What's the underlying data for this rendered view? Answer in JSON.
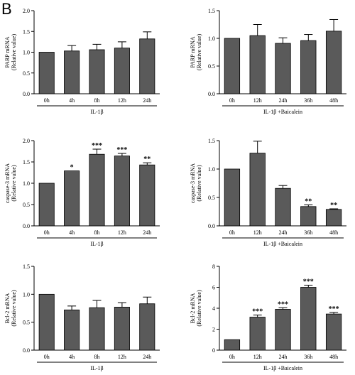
{
  "figure": {
    "panel_label": "B"
  },
  "chart_data": [
    {
      "type": "bar",
      "ylabel": [
        "PARP mRNA",
        "(Relative value)"
      ],
      "xlabel": "IL-1β",
      "categories": [
        "0h",
        "4h",
        "8h",
        "12h",
        "24h"
      ],
      "values": [
        1.0,
        1.03,
        1.06,
        1.1,
        1.32
      ],
      "errors": [
        0,
        0.13,
        0.13,
        0.15,
        0.17
      ],
      "significance": [
        "",
        "",
        "",
        "",
        ""
      ],
      "ylim": [
        0,
        2.0
      ],
      "yticks": [
        "0.0",
        "0.5",
        "1.0",
        "1.5",
        "2.0"
      ],
      "ytick_values": [
        0,
        0.5,
        1.0,
        1.5,
        2.0
      ]
    },
    {
      "type": "bar",
      "ylabel": [
        "PARP mRNA",
        "(Relative value)"
      ],
      "xlabel": "IL-1β +Baicalein",
      "categories": [
        "0h",
        "12h",
        "24h",
        "36h",
        "48h"
      ],
      "values": [
        1.0,
        1.05,
        0.91,
        0.96,
        1.13
      ],
      "errors": [
        0,
        0.2,
        0.1,
        0.11,
        0.21
      ],
      "significance": [
        "",
        "",
        "",
        "",
        ""
      ],
      "ylim": [
        0,
        1.5
      ],
      "yticks": [
        "0.0",
        "0.5",
        "1.0",
        "1.5"
      ],
      "ytick_values": [
        0,
        0.5,
        1.0,
        1.5
      ]
    },
    {
      "type": "bar",
      "ylabel": [
        "caspase-3 mRNA",
        "(Relative value)"
      ],
      "xlabel": "IL-1β",
      "categories": [
        "0h",
        "4h",
        "8h",
        "12h",
        "24h"
      ],
      "values": [
        1.0,
        1.29,
        1.68,
        1.64,
        1.43
      ],
      "errors": [
        0,
        0,
        0.12,
        0.06,
        0.05
      ],
      "significance": [
        "",
        "*",
        "***",
        "***",
        "**"
      ],
      "ylim": [
        0,
        2.0
      ],
      "yticks": [
        "0.0",
        "0.5",
        "1.0",
        "1.5",
        "2.0"
      ],
      "ytick_values": [
        0,
        0.5,
        1.0,
        1.5,
        2.0
      ]
    },
    {
      "type": "bar",
      "ylabel": [
        "caspase-3 mRNA",
        "(Relative value)"
      ],
      "xlabel": "IL-1β +Baicalein",
      "categories": [
        "0h",
        "12h",
        "24h",
        "36h",
        "48h"
      ],
      "values": [
        1.0,
        1.28,
        0.66,
        0.34,
        0.29
      ],
      "errors": [
        0,
        0.21,
        0.05,
        0.03,
        0.01
      ],
      "significance": [
        "",
        "",
        "",
        "**",
        "**"
      ],
      "ylim": [
        0,
        1.5
      ],
      "yticks": [
        "0.0",
        "0.5",
        "1.0",
        "1.5"
      ],
      "ytick_values": [
        0,
        0.5,
        1.0,
        1.5
      ]
    },
    {
      "type": "bar",
      "ylabel": [
        "Bcl-2 mRNA",
        "(Relative value)"
      ],
      "xlabel": "IL-1β",
      "categories": [
        "0h",
        "4h",
        "8h",
        "12h",
        "24h"
      ],
      "values": [
        1.0,
        0.72,
        0.76,
        0.77,
        0.83
      ],
      "errors": [
        0,
        0.07,
        0.13,
        0.08,
        0.12
      ],
      "significance": [
        "",
        "",
        "",
        "",
        ""
      ],
      "ylim": [
        0,
        1.5
      ],
      "yticks": [
        "0.0",
        "0.5",
        "1.0",
        "1.5"
      ],
      "ytick_values": [
        0,
        0.5,
        1.0,
        1.5
      ]
    },
    {
      "type": "bar",
      "ylabel": [
        "Bcl-2 mRNA",
        "(Relative value)"
      ],
      "xlabel": "IL-1β +Baicalein",
      "categories": [
        "0h",
        "12h",
        "24h",
        "36h",
        "48h"
      ],
      "values": [
        1.0,
        3.15,
        3.9,
        6.0,
        3.45
      ],
      "errors": [
        0,
        0.2,
        0.15,
        0.2,
        0.15
      ],
      "significance": [
        "",
        "***",
        "***",
        "***",
        "***"
      ],
      "ylim": [
        0,
        8
      ],
      "yticks": [
        "0",
        "2",
        "4",
        "6",
        "8"
      ],
      "ytick_values": [
        0,
        2,
        4,
        6,
        8
      ]
    }
  ]
}
